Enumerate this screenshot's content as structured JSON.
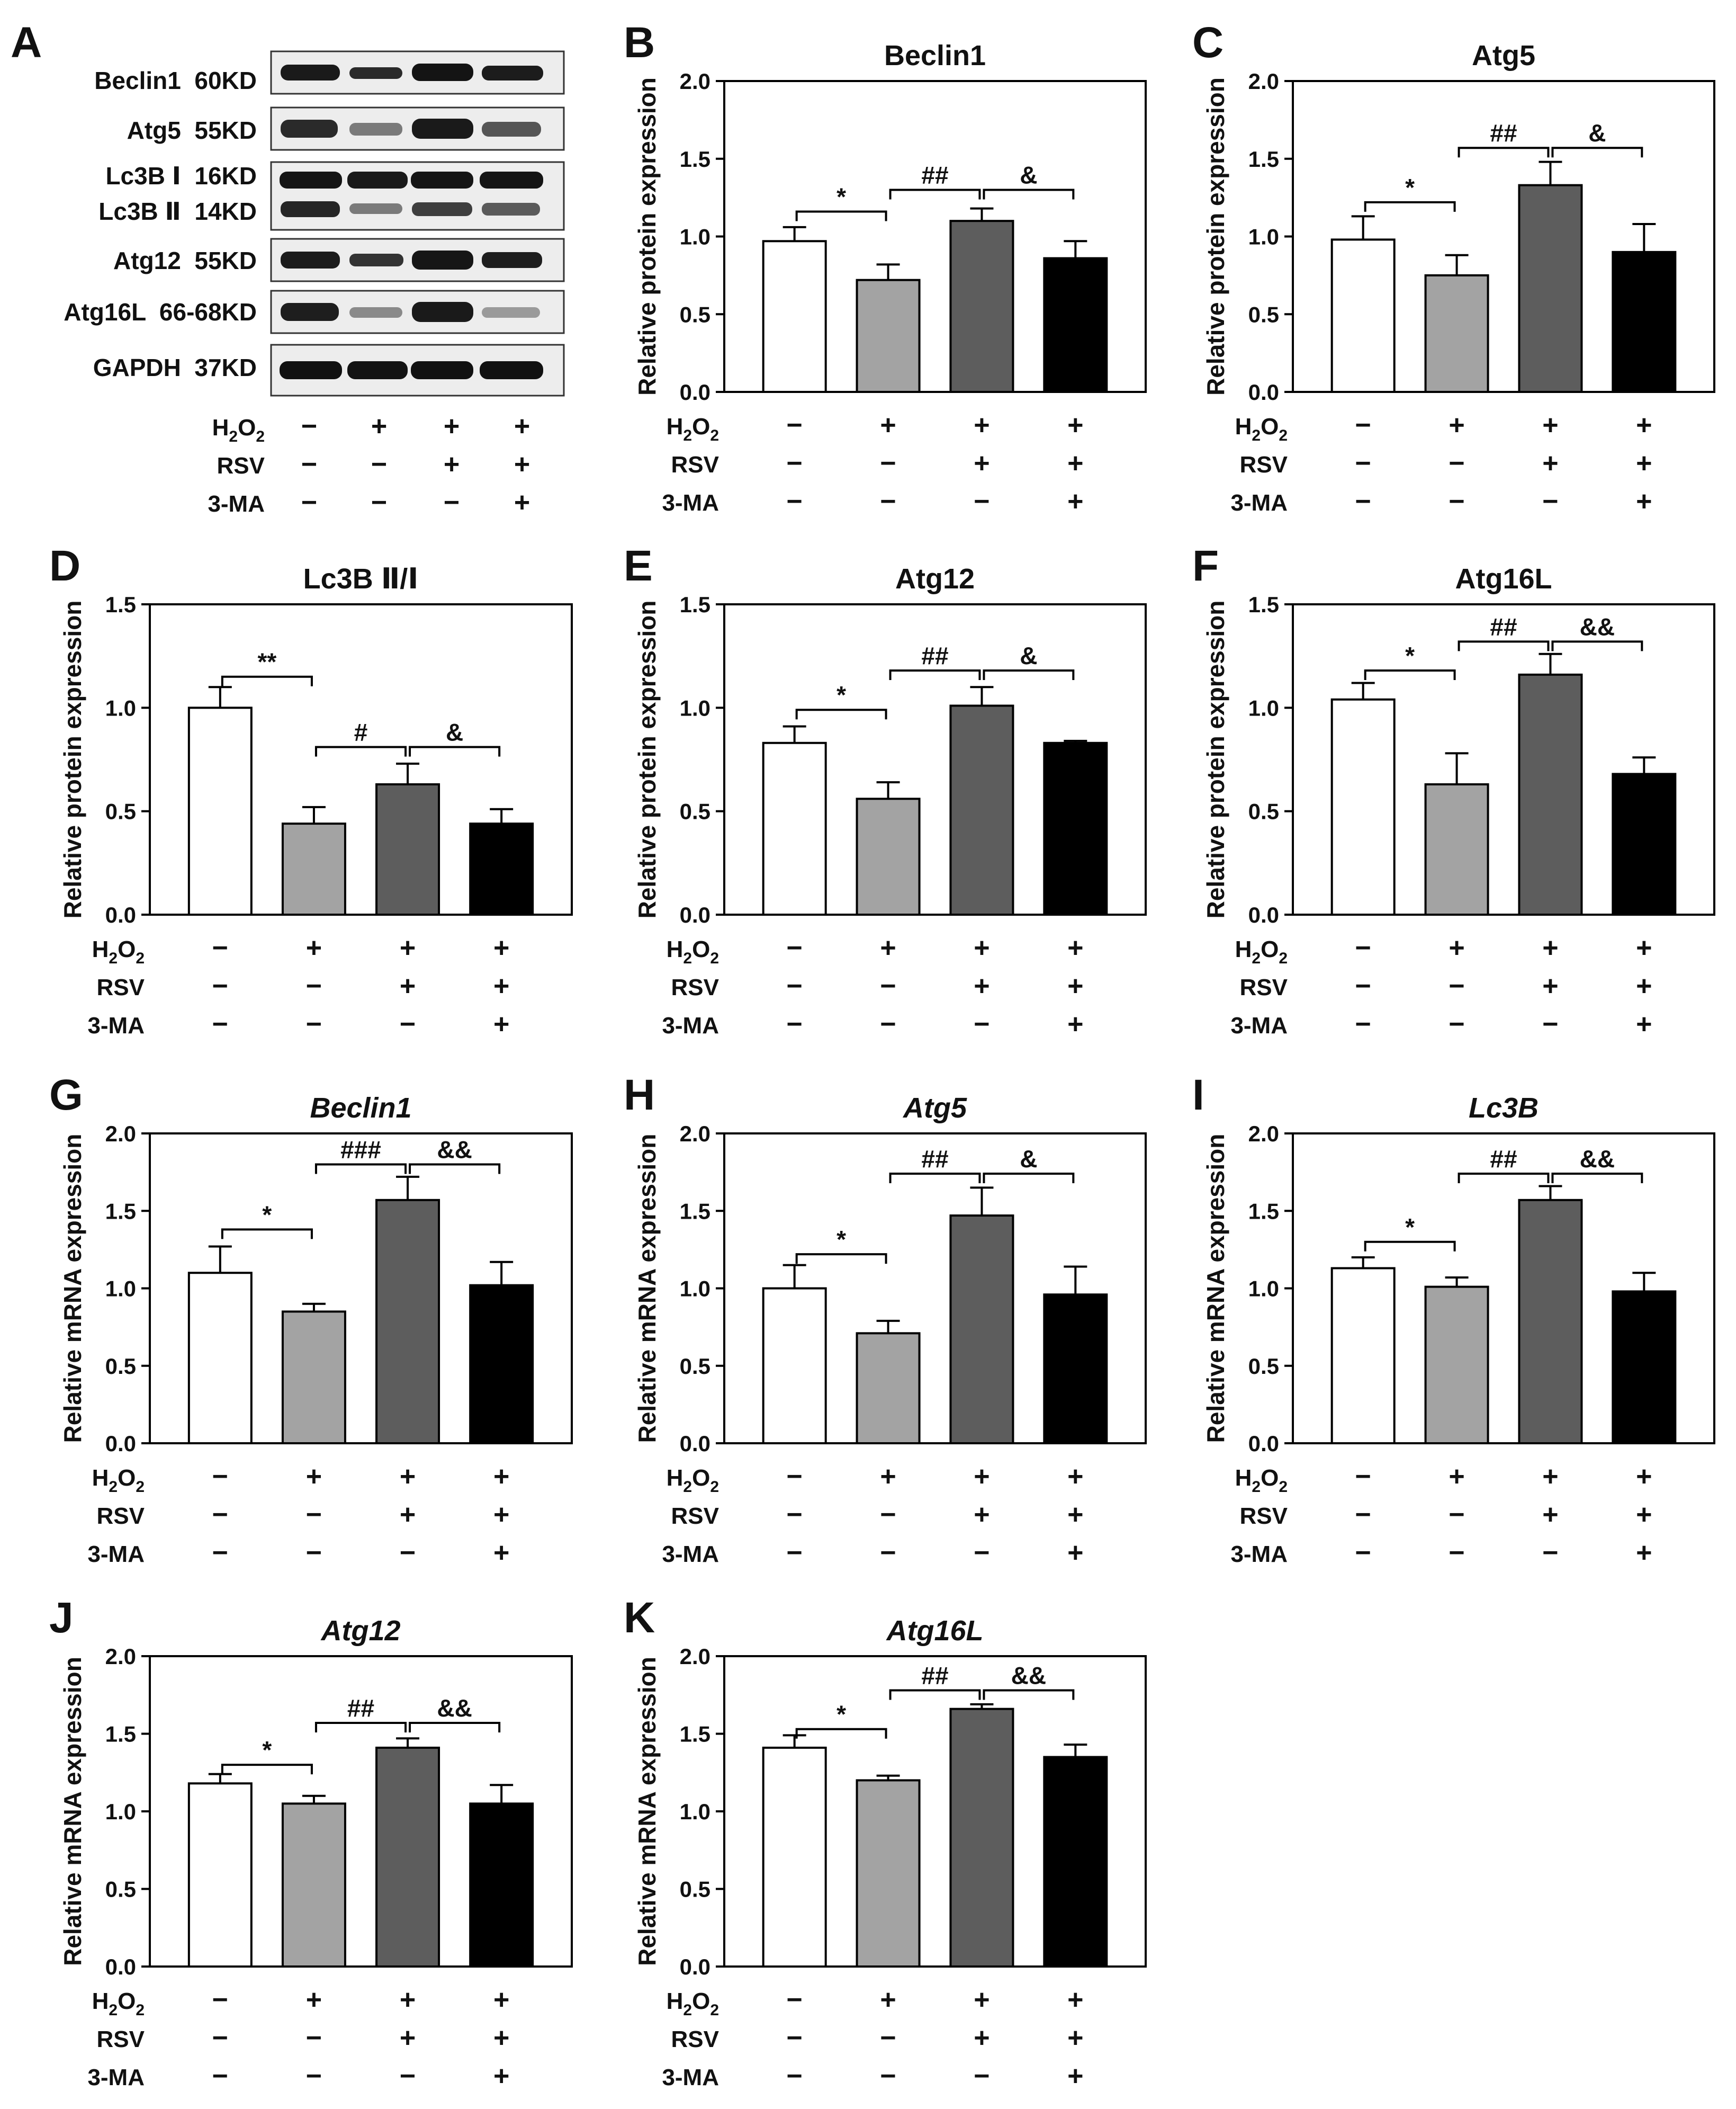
{
  "treatments": {
    "labels": [
      "H2O2",
      "RSV",
      "3-MA"
    ],
    "signs": [
      [
        "−",
        "+",
        "+",
        "+"
      ],
      [
        "−",
        "−",
        "+",
        "+"
      ],
      [
        "−",
        "−",
        "−",
        "+"
      ]
    ]
  },
  "colors": {
    "bars": [
      "#ffffff",
      "#a3a3a3",
      "#5d5d5d",
      "#000000"
    ],
    "axis": "#000000",
    "text": "#111111"
  },
  "blot": {
    "letter": "A",
    "rows": [
      {
        "label": "Beclin1  60KD"
      },
      {
        "label": "Atg5  55KD"
      },
      {
        "label": "Lc3B Ⅰ  16KD",
        "label2": "Lc3B Ⅱ  14KD"
      },
      {
        "label": "Atg12  55KD"
      },
      {
        "label": "Atg16L  66-68KD"
      },
      {
        "label": "GAPDH  37KD"
      }
    ]
  },
  "chart_data": [
    {
      "letter": "B",
      "type": "bar",
      "title": "Beclin1",
      "italic": false,
      "ylabel": "Relative protein expression",
      "ylim": [
        0,
        2.0
      ],
      "yticks": [
        "0.0",
        "0.5",
        "1.0",
        "1.5",
        "2.0"
      ],
      "categories": [
        "Control",
        "H2O2",
        "H2O2+RSV",
        "H2O2+RSV+3-MA"
      ],
      "values": [
        0.97,
        0.72,
        1.1,
        0.86
      ],
      "errors": [
        0.09,
        0.1,
        0.08,
        0.11
      ],
      "sig": [
        {
          "a": 0,
          "b": 1,
          "label": "*",
          "y": 1.16
        },
        {
          "a": 1,
          "b": 2,
          "label": "##",
          "y": 1.3
        },
        {
          "a": 2,
          "b": 3,
          "label": "&",
          "y": 1.3
        }
      ]
    },
    {
      "letter": "C",
      "type": "bar",
      "title": "Atg5",
      "italic": false,
      "ylabel": "Relative protein expression",
      "ylim": [
        0,
        2.0
      ],
      "yticks": [
        "0.0",
        "0.5",
        "1.0",
        "1.5",
        "2.0"
      ],
      "categories": [
        "Control",
        "H2O2",
        "H2O2+RSV",
        "H2O2+RSV+3-MA"
      ],
      "values": [
        0.98,
        0.75,
        1.33,
        0.9
      ],
      "errors": [
        0.15,
        0.13,
        0.15,
        0.18
      ],
      "sig": [
        {
          "a": 0,
          "b": 1,
          "label": "*",
          "y": 1.22
        },
        {
          "a": 1,
          "b": 2,
          "label": "##",
          "y": 1.57
        },
        {
          "a": 2,
          "b": 3,
          "label": "&",
          "y": 1.57
        }
      ]
    },
    {
      "letter": "D",
      "type": "bar",
      "title": "Lc3B Ⅱ/Ⅰ",
      "italic": false,
      "ylabel": "Relative protein expression",
      "ylim": [
        0,
        1.5
      ],
      "yticks": [
        "0.0",
        "0.5",
        "1.0",
        "1.5"
      ],
      "categories": [
        "Control",
        "H2O2",
        "H2O2+RSV",
        "H2O2+RSV+3-MA"
      ],
      "values": [
        1.0,
        0.44,
        0.63,
        0.44
      ],
      "errors": [
        0.1,
        0.08,
        0.1,
        0.07
      ],
      "sig": [
        {
          "a": 0,
          "b": 1,
          "label": "**",
          "y": 1.15
        },
        {
          "a": 1,
          "b": 2,
          "label": "#",
          "y": 0.81
        },
        {
          "a": 2,
          "b": 3,
          "label": "&",
          "y": 0.81
        }
      ]
    },
    {
      "letter": "E",
      "type": "bar",
      "title": "Atg12",
      "italic": false,
      "ylabel": "Relative protein expression",
      "ylim": [
        0,
        1.5
      ],
      "yticks": [
        "0.0",
        "0.5",
        "1.0",
        "1.5"
      ],
      "categories": [
        "Control",
        "H2O2",
        "H2O2+RSV",
        "H2O2+RSV+3-MA"
      ],
      "values": [
        0.83,
        0.56,
        1.01,
        0.83
      ],
      "errors": [
        0.08,
        0.08,
        0.09,
        0.01
      ],
      "sig": [
        {
          "a": 0,
          "b": 1,
          "label": "*",
          "y": 0.99
        },
        {
          "a": 1,
          "b": 2,
          "label": "##",
          "y": 1.18
        },
        {
          "a": 2,
          "b": 3,
          "label": "&",
          "y": 1.18
        }
      ]
    },
    {
      "letter": "F",
      "type": "bar",
      "title": "Atg16L",
      "italic": false,
      "ylabel": "Relative protein expression",
      "ylim": [
        0,
        1.5
      ],
      "yticks": [
        "0.0",
        "0.5",
        "1.0",
        "1.5"
      ],
      "categories": [
        "Control",
        "H2O2",
        "H2O2+RSV",
        "H2O2+RSV+3-MA"
      ],
      "values": [
        1.04,
        0.63,
        1.16,
        0.68
      ],
      "errors": [
        0.08,
        0.15,
        0.1,
        0.08
      ],
      "sig": [
        {
          "a": 0,
          "b": 1,
          "label": "*",
          "y": 1.18
        },
        {
          "a": 1,
          "b": 2,
          "label": "##",
          "y": 1.32
        },
        {
          "a": 2,
          "b": 3,
          "label": "&&",
          "y": 1.32
        }
      ]
    },
    {
      "letter": "G",
      "type": "bar",
      "title": "Beclin1",
      "italic": true,
      "ylabel": "Relative mRNA expression",
      "ylim": [
        0,
        2.0
      ],
      "yticks": [
        "0.0",
        "0.5",
        "1.0",
        "1.5",
        "2.0"
      ],
      "categories": [
        "Control",
        "H2O2",
        "H2O2+RSV",
        "H2O2+RSV+3-MA"
      ],
      "values": [
        1.1,
        0.85,
        1.57,
        1.02
      ],
      "errors": [
        0.17,
        0.05,
        0.15,
        0.15
      ],
      "sig": [
        {
          "a": 0,
          "b": 1,
          "label": "*",
          "y": 1.38
        },
        {
          "a": 1,
          "b": 2,
          "label": "###",
          "y": 1.8
        },
        {
          "a": 2,
          "b": 3,
          "label": "&&",
          "y": 1.8
        }
      ]
    },
    {
      "letter": "H",
      "type": "bar",
      "title": "Atg5",
      "italic": true,
      "ylabel": "Relative mRNA expression",
      "ylim": [
        0,
        2.0
      ],
      "yticks": [
        "0.0",
        "0.5",
        "1.0",
        "1.5",
        "2.0"
      ],
      "categories": [
        "Control",
        "H2O2",
        "H2O2+RSV",
        "H2O2+RSV+3-MA"
      ],
      "values": [
        1.0,
        0.71,
        1.47,
        0.96
      ],
      "errors": [
        0.15,
        0.08,
        0.18,
        0.18
      ],
      "sig": [
        {
          "a": 0,
          "b": 1,
          "label": "*",
          "y": 1.22
        },
        {
          "a": 1,
          "b": 2,
          "label": "##",
          "y": 1.74
        },
        {
          "a": 2,
          "b": 3,
          "label": "&",
          "y": 1.74
        }
      ]
    },
    {
      "letter": "I",
      "type": "bar",
      "title": "Lc3B",
      "italic": true,
      "ylabel": "Relative mRNA expression",
      "ylim": [
        0,
        2.0
      ],
      "yticks": [
        "0.0",
        "0.5",
        "1.0",
        "1.5",
        "2.0"
      ],
      "categories": [
        "Control",
        "H2O2",
        "H2O2+RSV",
        "H2O2+RSV+3-MA"
      ],
      "values": [
        1.13,
        1.01,
        1.57,
        0.98
      ],
      "errors": [
        0.07,
        0.06,
        0.09,
        0.12
      ],
      "sig": [
        {
          "a": 0,
          "b": 1,
          "label": "*",
          "y": 1.3
        },
        {
          "a": 1,
          "b": 2,
          "label": "##",
          "y": 1.74
        },
        {
          "a": 2,
          "b": 3,
          "label": "&&",
          "y": 1.74
        }
      ]
    },
    {
      "letter": "J",
      "type": "bar",
      "title": "Atg12",
      "italic": true,
      "ylabel": "Relative mRNA expression",
      "ylim": [
        0,
        2.0
      ],
      "yticks": [
        "0.0",
        "0.5",
        "1.0",
        "1.5",
        "2.0"
      ],
      "categories": [
        "Control",
        "H2O2",
        "H2O2+RSV",
        "H2O2+RSV+3-MA"
      ],
      "values": [
        1.18,
        1.05,
        1.41,
        1.05
      ],
      "errors": [
        0.06,
        0.05,
        0.06,
        0.12
      ],
      "sig": [
        {
          "a": 0,
          "b": 1,
          "label": "*",
          "y": 1.3
        },
        {
          "a": 1,
          "b": 2,
          "label": "##",
          "y": 1.57
        },
        {
          "a": 2,
          "b": 3,
          "label": "&&",
          "y": 1.57
        }
      ]
    },
    {
      "letter": "K",
      "type": "bar",
      "title": "Atg16L",
      "italic": true,
      "ylabel": "Relative mRNA expression",
      "ylim": [
        0,
        2.0
      ],
      "yticks": [
        "0.0",
        "0.5",
        "1.0",
        "1.5",
        "2.0"
      ],
      "categories": [
        "Control",
        "H2O2",
        "H2O2+RSV",
        "H2O2+RSV+3-MA"
      ],
      "values": [
        1.41,
        1.2,
        1.66,
        1.35
      ],
      "errors": [
        0.08,
        0.03,
        0.03,
        0.08
      ],
      "sig": [
        {
          "a": 0,
          "b": 1,
          "label": "*",
          "y": 1.53
        },
        {
          "a": 1,
          "b": 2,
          "label": "##",
          "y": 1.78
        },
        {
          "a": 2,
          "b": 3,
          "label": "&&",
          "y": 1.78
        }
      ]
    }
  ]
}
